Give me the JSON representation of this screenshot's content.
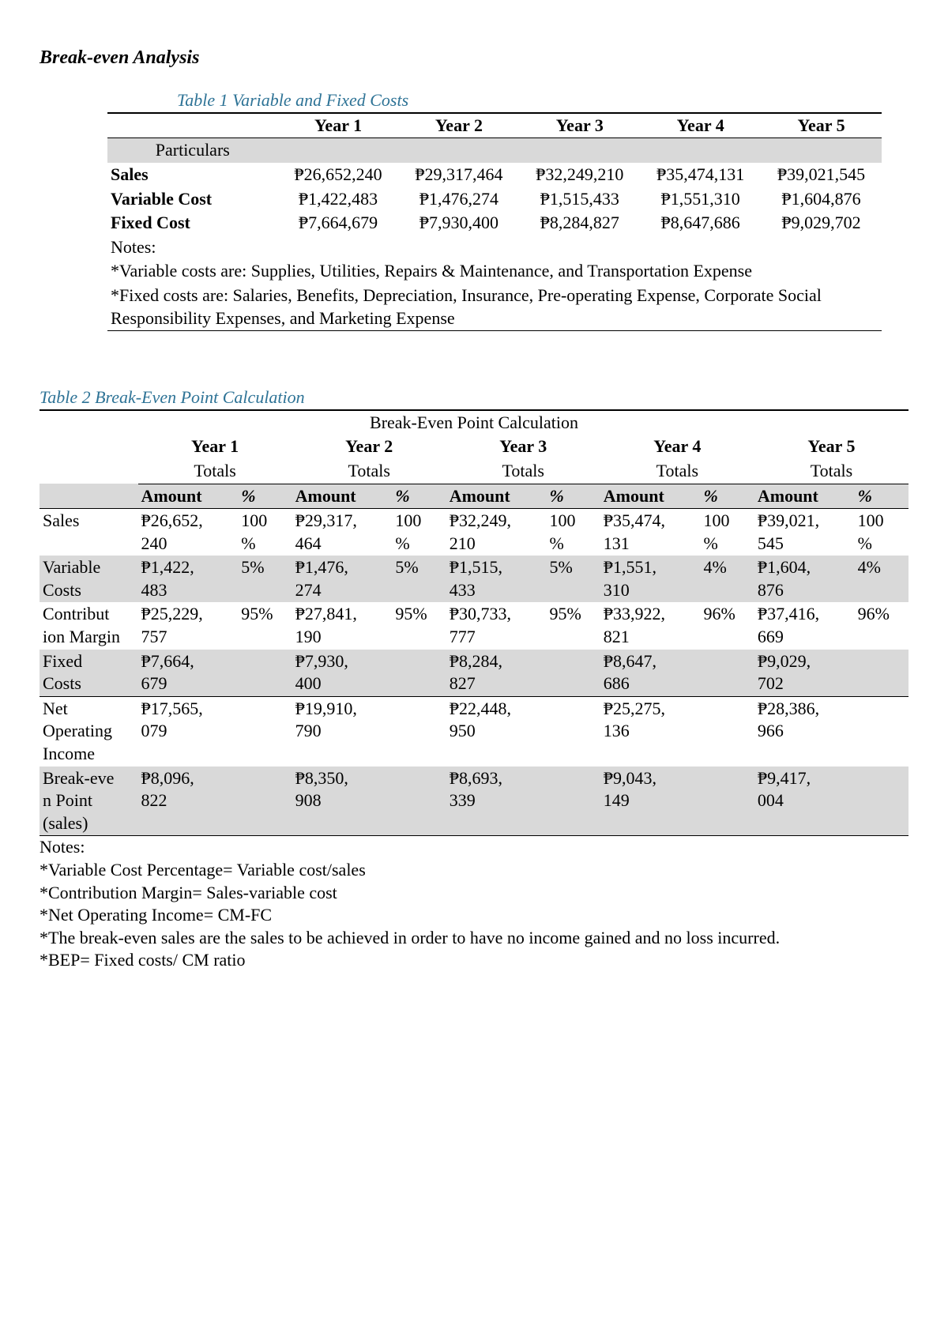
{
  "doc_title": "Break-even Analysis",
  "colors": {
    "caption": "#2e7396",
    "grey_row": "#d9d9d9",
    "border": "#000000",
    "background": "#ffffff",
    "text": "#000000"
  },
  "currency_symbol": "₱",
  "table1": {
    "caption": "Table 1 Variable and Fixed Costs",
    "particulars_label": "Particulars",
    "headers": [
      "Year 1",
      "Year 2",
      "Year 3",
      "Year 4",
      "Year 5"
    ],
    "rows": [
      {
        "label": "Sales",
        "bold": true,
        "values": [
          "₱26,652,240",
          "₱29,317,464",
          "₱32,249,210",
          "₱35,474,131",
          "₱39,021,545"
        ]
      },
      {
        "label": "Variable Cost",
        "bold": true,
        "values": [
          "₱1,422,483",
          "₱1,476,274",
          "₱1,515,433",
          "₱1,551,310",
          "₱1,604,876"
        ]
      },
      {
        "label": "Fixed Cost",
        "bold": true,
        "values": [
          "₱7,664,679",
          "₱7,930,400",
          "₱8,284,827",
          "₱8,647,686",
          "₱9,029,702"
        ]
      }
    ],
    "notes_label": "Notes:",
    "notes": [
      "*Variable costs are: Supplies, Utilities, Repairs & Maintenance, and Transportation Expense",
      "*Fixed costs are: Salaries, Benefits, Depreciation, Insurance, Pre-operating Expense, Corporate Social Responsibility Expenses, and Marketing Expense"
    ]
  },
  "table2": {
    "caption": "Table 2 Break-Even Point Calculation",
    "title": "Break-Even Point Calculation",
    "year_headers": [
      "Year 1",
      "Year 2",
      "Year 3",
      "Year 4",
      "Year 5"
    ],
    "totals_label": "Totals",
    "amount_label": "Amount",
    "percent_label": "%",
    "rows": [
      {
        "label": "Sales",
        "grey": false,
        "underline": false,
        "cells": [
          [
            "₱26,652,240",
            "100%"
          ],
          [
            "₱29,317,464",
            "100%"
          ],
          [
            "₱32,249,210",
            "100%"
          ],
          [
            "₱35,474,131",
            "100%"
          ],
          [
            "₱39,021,545",
            "100%"
          ]
        ]
      },
      {
        "label": "Variable Costs",
        "grey": true,
        "underline": false,
        "cells": [
          [
            "₱1,422,483",
            "5%"
          ],
          [
            "₱1,476,274",
            "5%"
          ],
          [
            "₱1,515,433",
            "5%"
          ],
          [
            "₱1,551,310",
            "4%"
          ],
          [
            "₱1,604,876",
            "4%"
          ]
        ]
      },
      {
        "label": "Contribution Margin",
        "grey": false,
        "underline": false,
        "cells": [
          [
            "₱25,229,757",
            "95%"
          ],
          [
            "₱27,841,190",
            "95%"
          ],
          [
            "₱30,733,777",
            "95%"
          ],
          [
            "₱33,922,821",
            "96%"
          ],
          [
            "₱37,416,669",
            "96%"
          ]
        ]
      },
      {
        "label": "Fixed Costs",
        "grey": true,
        "underline": true,
        "cells": [
          [
            "₱7,664,679",
            ""
          ],
          [
            "₱7,930,400",
            ""
          ],
          [
            "₱8,284,827",
            ""
          ],
          [
            "₱8,647,686",
            ""
          ],
          [
            "₱9,029,702",
            ""
          ]
        ]
      },
      {
        "label": "Net Operating Income",
        "grey": false,
        "underline": false,
        "cells": [
          [
            "₱17,565,079",
            ""
          ],
          [
            "₱19,910,790",
            ""
          ],
          [
            "₱22,448,950",
            ""
          ],
          [
            "₱25,275,136",
            ""
          ],
          [
            "₱28,386,966",
            ""
          ]
        ]
      },
      {
        "label": "Break-even Point (sales)",
        "grey": true,
        "underline": true,
        "cells": [
          [
            "₱8,096,822",
            ""
          ],
          [
            "₱8,350,908",
            ""
          ],
          [
            "₱8,693,339",
            ""
          ],
          [
            "₱9,043,149",
            ""
          ],
          [
            "₱9,417,004",
            ""
          ]
        ]
      }
    ],
    "notes_label": "Notes:",
    "notes": [
      "*Variable Cost Percentage= Variable cost/sales",
      "*Contribution Margin= Sales-variable cost",
      "*Net Operating Income= CM-FC",
      "*The break-even sales are the sales to be achieved in order to have no income gained and no loss incurred.",
      "*BEP= Fixed costs/ CM ratio"
    ]
  }
}
